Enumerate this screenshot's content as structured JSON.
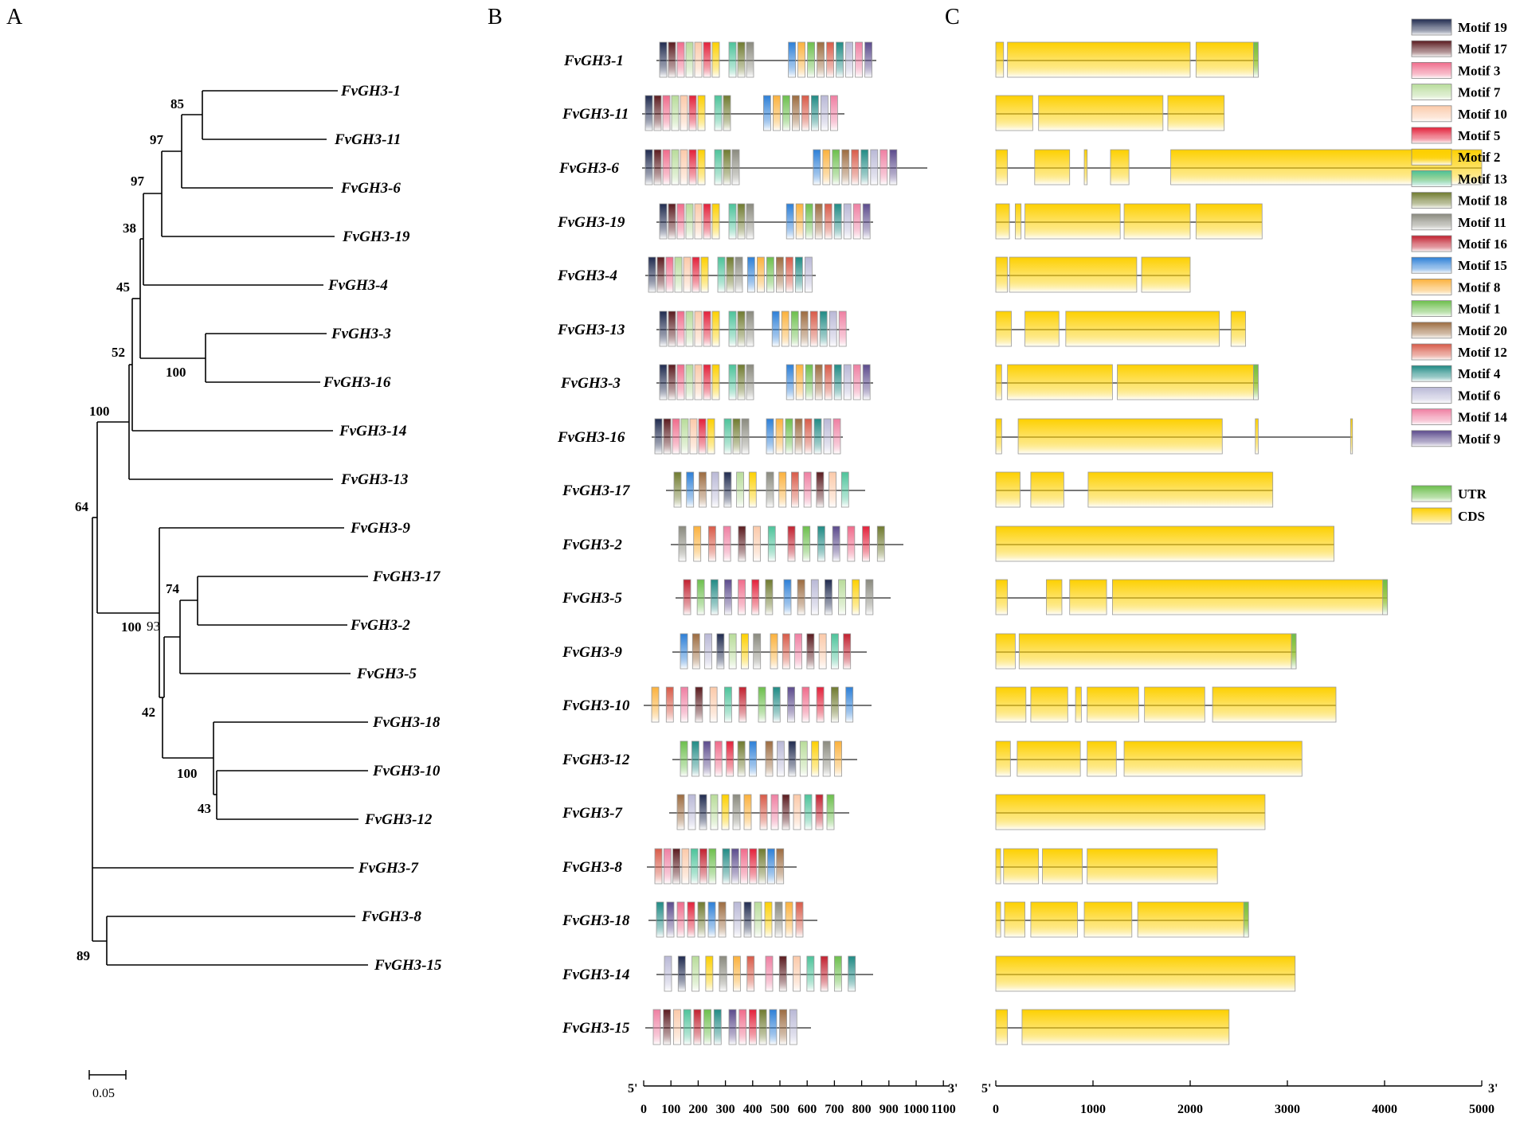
{
  "panels": {
    "a": "A",
    "b": "B",
    "c": "C"
  },
  "scale_bar_label": "0.05",
  "genes": [
    "FvGH3-1",
    "FvGH3-11",
    "FvGH3-6",
    "FvGH3-19",
    "FvGH3-4",
    "FvGH3-13",
    "FvGH3-3",
    "FvGH3-16",
    "FvGH3-17",
    "FvGH3-2",
    "FvGH3-5",
    "FvGH3-9",
    "FvGH3-10",
    "FvGH3-12",
    "FvGH3-7",
    "FvGH3-8",
    "FvGH3-18",
    "FvGH3-14",
    "FvGH3-15"
  ],
  "tree": {
    "leaves": [
      "FvGH3-1",
      "FvGH3-11",
      "FvGH3-6",
      "FvGH3-19",
      "FvGH3-4",
      "FvGH3-3",
      "FvGH3-16",
      "FvGH3-14",
      "FvGH3-13",
      "FvGH3-9",
      "FvGH3-17",
      "FvGH3-2",
      "FvGH3-5",
      "FvGH3-18",
      "FvGH3-10",
      "FvGH3-12",
      "FvGH3-7",
      "FvGH3-8",
      "FvGH3-15"
    ],
    "bootstrap": [
      "85",
      "97",
      "97",
      "38",
      "45",
      "52",
      "100",
      "100",
      "64",
      "74",
      "93",
      "100",
      "42",
      "100",
      "43",
      "89"
    ]
  },
  "motif_axis": {
    "start": "5'",
    "end": "3'",
    "ticks": [
      "0",
      "100",
      "200",
      "300",
      "400",
      "500",
      "600",
      "700",
      "800",
      "900",
      "1000",
      "1100"
    ]
  },
  "gene_axis": {
    "start": "5'",
    "end": "3'",
    "ticks": [
      "0",
      "1000",
      "2000",
      "3000",
      "4000",
      "5000"
    ]
  },
  "legend": {
    "motifs": [
      {
        "label": "Motif 19",
        "color": "#1f2a4f"
      },
      {
        "label": "Motif 17",
        "color": "#5a1a1e"
      },
      {
        "label": "Motif 3",
        "color": "#f06b8b"
      },
      {
        "label": "Motif 7",
        "color": "#b8dc9a"
      },
      {
        "label": "Motif 10",
        "color": "#fbc9a9"
      },
      {
        "label": "Motif 5",
        "color": "#e3203a"
      },
      {
        "label": "Motif 2",
        "color": "#fdd000"
      },
      {
        "label": "Motif 13",
        "color": "#4cc39a"
      },
      {
        "label": "Motif 18",
        "color": "#6f7a2e"
      },
      {
        "label": "Motif 11",
        "color": "#8a8a7e"
      },
      {
        "label": "Motif 16",
        "color": "#c2202f"
      },
      {
        "label": "Motif 15",
        "color": "#2c7fd7"
      },
      {
        "label": "Motif 8",
        "color": "#fbb13c"
      },
      {
        "label": "Motif 1",
        "color": "#6cbf4c"
      },
      {
        "label": "Motif 20",
        "color": "#9c6b3f"
      },
      {
        "label": "Motif 12",
        "color": "#d85a48"
      },
      {
        "label": "Motif 4",
        "color": "#1f8a84"
      },
      {
        "label": "Motif 6",
        "color": "#b9b8d6"
      },
      {
        "label": "Motif 14",
        "color": "#ef7fa2"
      },
      {
        "label": "Motif 9",
        "color": "#5b4a8c"
      }
    ],
    "structure": [
      {
        "label": "UTR",
        "color": "#6cbf4c"
      },
      {
        "label": "CDS",
        "color": "#fdd000"
      }
    ]
  }
}
